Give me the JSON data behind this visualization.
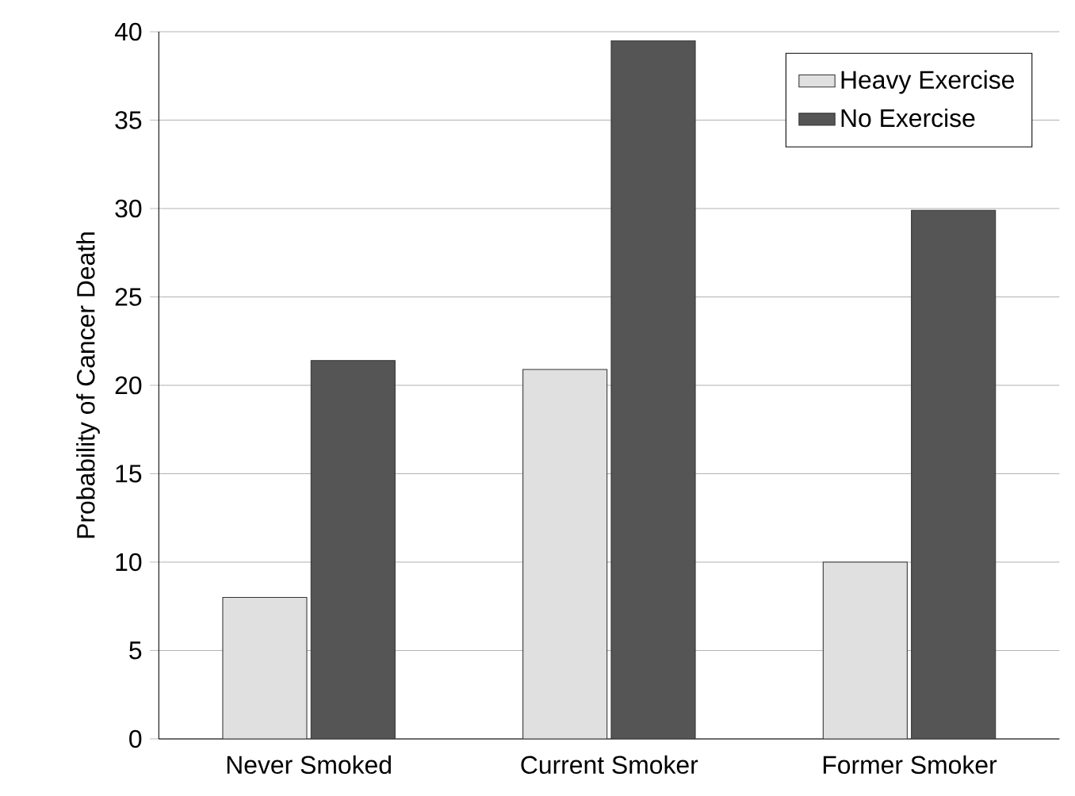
{
  "chart_data": {
    "type": "bar",
    "ylabel": "Probability of Cancer Death",
    "categories": [
      "Never Smoked",
      "Current Smoker",
      "Former Smoker"
    ],
    "series": [
      {
        "name": "Heavy Exercise",
        "color": "#e0e0e0",
        "values": [
          8,
          20.9,
          10
        ]
      },
      {
        "name": "No Exercise",
        "color": "#555555",
        "values": [
          21.4,
          39.5,
          29.9
        ]
      }
    ],
    "ylim": [
      0,
      40
    ],
    "yticks": [
      0,
      5,
      10,
      15,
      20,
      25,
      30,
      35,
      40
    ],
    "grid": "y",
    "legend": "top right"
  }
}
